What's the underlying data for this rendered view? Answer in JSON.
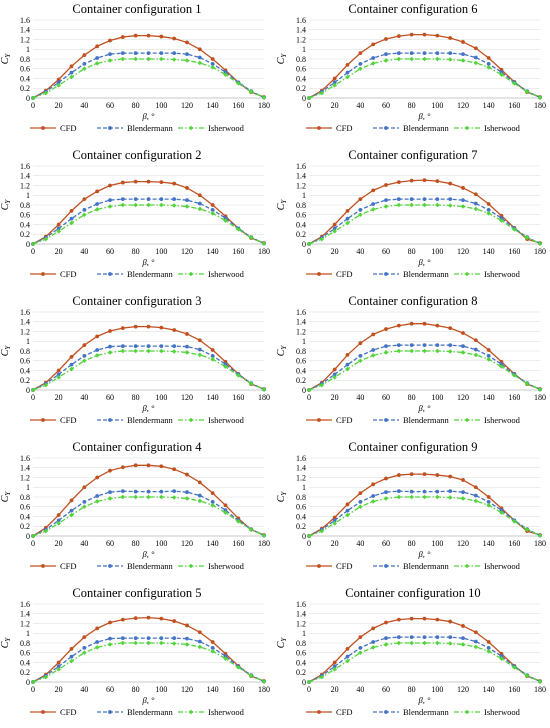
{
  "colors": {
    "cfd": "#c0501f",
    "blendermann": "#4472c4",
    "isherwood": "#52d43a",
    "axis": "#000000",
    "grid": "#d9d9d9"
  },
  "common": {
    "xlabel": "β, °",
    "ylabel_main": "C",
    "ylabel_sub": "Y",
    "x_ticks": [
      0,
      20,
      40,
      60,
      80,
      100,
      120,
      140,
      160,
      180
    ],
    "y_ticks": [
      0,
      0.2,
      0.4,
      0.6,
      0.8,
      1,
      1.2,
      1.4,
      1.6
    ],
    "series_names": [
      "CFD",
      "Blendermann",
      "Isherwood"
    ]
  },
  "chart_data": [
    {
      "type": "line",
      "title": "Container configuration 1",
      "xlabel": "β, °",
      "ylabel": "CY",
      "xlim": [
        0,
        180
      ],
      "ylim": [
        0,
        1.6
      ],
      "legend": "bottom",
      "x": [
        0,
        10,
        20,
        30,
        40,
        50,
        60,
        70,
        80,
        90,
        100,
        110,
        120,
        130,
        140,
        150,
        160,
        170,
        180
      ],
      "series": [
        {
          "name": "CFD",
          "values": [
            0,
            0.15,
            0.38,
            0.65,
            0.88,
            1.06,
            1.18,
            1.25,
            1.28,
            1.28,
            1.26,
            1.22,
            1.14,
            1.0,
            0.8,
            0.57,
            0.32,
            0.12,
            0.02
          ]
        },
        {
          "name": "Blendermann",
          "values": [
            0,
            0.13,
            0.32,
            0.52,
            0.7,
            0.82,
            0.9,
            0.92,
            0.92,
            0.92,
            0.92,
            0.92,
            0.9,
            0.83,
            0.7,
            0.53,
            0.32,
            0.14,
            0.01
          ]
        },
        {
          "name": "Isherwood",
          "values": [
            0,
            0.1,
            0.26,
            0.43,
            0.6,
            0.71,
            0.77,
            0.8,
            0.8,
            0.8,
            0.8,
            0.79,
            0.77,
            0.72,
            0.63,
            0.48,
            0.3,
            0.13,
            0.01
          ]
        }
      ]
    },
    {
      "type": "line",
      "title": "Container configuration 6",
      "xlabel": "β, °",
      "ylabel": "CY",
      "xlim": [
        0,
        180
      ],
      "ylim": [
        0,
        1.6
      ],
      "legend": "bottom",
      "x": [
        0,
        10,
        20,
        30,
        40,
        50,
        60,
        70,
        80,
        90,
        100,
        110,
        120,
        130,
        140,
        150,
        160,
        170,
        180
      ],
      "series": [
        {
          "name": "CFD",
          "values": [
            0,
            0.15,
            0.4,
            0.68,
            0.92,
            1.1,
            1.21,
            1.27,
            1.3,
            1.3,
            1.28,
            1.23,
            1.15,
            1.02,
            0.82,
            0.58,
            0.33,
            0.12,
            0.02
          ]
        },
        {
          "name": "Blendermann",
          "values": [
            0,
            0.13,
            0.32,
            0.52,
            0.7,
            0.82,
            0.9,
            0.92,
            0.92,
            0.92,
            0.92,
            0.92,
            0.9,
            0.83,
            0.7,
            0.53,
            0.32,
            0.14,
            0.01
          ]
        },
        {
          "name": "Isherwood",
          "values": [
            0,
            0.1,
            0.26,
            0.43,
            0.6,
            0.71,
            0.77,
            0.8,
            0.8,
            0.8,
            0.8,
            0.79,
            0.77,
            0.72,
            0.63,
            0.48,
            0.3,
            0.13,
            0.01
          ]
        }
      ]
    },
    {
      "type": "line",
      "title": "Container configuration 2",
      "xlabel": "β, °",
      "ylabel": "CY",
      "xlim": [
        0,
        180
      ],
      "ylim": [
        0,
        1.6
      ],
      "legend": "bottom",
      "x": [
        0,
        10,
        20,
        30,
        40,
        50,
        60,
        70,
        80,
        90,
        100,
        110,
        120,
        130,
        140,
        150,
        160,
        170,
        180
      ],
      "series": [
        {
          "name": "CFD",
          "values": [
            0,
            0.15,
            0.4,
            0.68,
            0.92,
            1.08,
            1.2,
            1.26,
            1.28,
            1.28,
            1.27,
            1.24,
            1.15,
            1.0,
            0.8,
            0.57,
            0.32,
            0.12,
            0.02
          ]
        },
        {
          "name": "Blendermann",
          "values": [
            0,
            0.13,
            0.32,
            0.52,
            0.7,
            0.82,
            0.9,
            0.92,
            0.92,
            0.92,
            0.92,
            0.92,
            0.9,
            0.83,
            0.7,
            0.53,
            0.32,
            0.14,
            0.01
          ]
        },
        {
          "name": "Isherwood",
          "values": [
            0,
            0.1,
            0.26,
            0.43,
            0.6,
            0.71,
            0.77,
            0.8,
            0.8,
            0.8,
            0.8,
            0.79,
            0.77,
            0.72,
            0.63,
            0.48,
            0.3,
            0.13,
            0.01
          ]
        }
      ]
    },
    {
      "type": "line",
      "title": "Container configuration 7",
      "xlabel": "β, °",
      "ylabel": "CY",
      "xlim": [
        0,
        180
      ],
      "ylim": [
        0,
        1.6
      ],
      "legend": "bottom",
      "x": [
        0,
        10,
        20,
        30,
        40,
        50,
        60,
        70,
        80,
        90,
        100,
        110,
        120,
        130,
        140,
        150,
        160,
        170,
        180
      ],
      "series": [
        {
          "name": "CFD",
          "values": [
            0,
            0.15,
            0.4,
            0.68,
            0.92,
            1.1,
            1.21,
            1.27,
            1.3,
            1.31,
            1.29,
            1.24,
            1.15,
            1.02,
            0.82,
            0.58,
            0.33,
            0.1,
            0.02
          ]
        },
        {
          "name": "Blendermann",
          "values": [
            0,
            0.13,
            0.32,
            0.52,
            0.7,
            0.82,
            0.9,
            0.92,
            0.92,
            0.92,
            0.92,
            0.92,
            0.9,
            0.83,
            0.7,
            0.53,
            0.32,
            0.14,
            0.01
          ]
        },
        {
          "name": "Isherwood",
          "values": [
            0,
            0.1,
            0.26,
            0.43,
            0.6,
            0.71,
            0.77,
            0.8,
            0.8,
            0.8,
            0.8,
            0.79,
            0.77,
            0.72,
            0.63,
            0.48,
            0.3,
            0.13,
            0.01
          ]
        }
      ]
    },
    {
      "type": "line",
      "title": "Container configuration 3",
      "xlabel": "β, °",
      "ylabel": "CY",
      "xlim": [
        0,
        180
      ],
      "ylim": [
        0,
        1.6
      ],
      "legend": "bottom",
      "x": [
        0,
        10,
        20,
        30,
        40,
        50,
        60,
        70,
        80,
        90,
        100,
        110,
        120,
        130,
        140,
        150,
        160,
        170,
        180
      ],
      "series": [
        {
          "name": "CFD",
          "values": [
            0,
            0.15,
            0.4,
            0.68,
            0.92,
            1.1,
            1.21,
            1.27,
            1.3,
            1.3,
            1.28,
            1.23,
            1.15,
            1.02,
            0.82,
            0.58,
            0.33,
            0.12,
            0.02
          ]
        },
        {
          "name": "Blendermann",
          "values": [
            0,
            0.13,
            0.32,
            0.52,
            0.7,
            0.82,
            0.89,
            0.9,
            0.9,
            0.9,
            0.9,
            0.9,
            0.89,
            0.83,
            0.7,
            0.53,
            0.32,
            0.14,
            0.01
          ]
        },
        {
          "name": "Isherwood",
          "values": [
            0,
            0.1,
            0.26,
            0.43,
            0.6,
            0.71,
            0.77,
            0.8,
            0.8,
            0.8,
            0.8,
            0.79,
            0.77,
            0.72,
            0.63,
            0.48,
            0.3,
            0.13,
            0.01
          ]
        }
      ]
    },
    {
      "type": "line",
      "title": "Container configuration 8",
      "xlabel": "β, °",
      "ylabel": "CY",
      "xlim": [
        0,
        180
      ],
      "ylim": [
        0,
        1.6
      ],
      "legend": "bottom",
      "x": [
        0,
        10,
        20,
        30,
        40,
        50,
        60,
        70,
        80,
        90,
        100,
        110,
        120,
        130,
        140,
        150,
        160,
        170,
        180
      ],
      "series": [
        {
          "name": "CFD",
          "values": [
            0,
            0.15,
            0.42,
            0.72,
            0.96,
            1.14,
            1.25,
            1.32,
            1.36,
            1.36,
            1.32,
            1.27,
            1.17,
            1.02,
            0.82,
            0.58,
            0.33,
            0.12,
            0.02
          ]
        },
        {
          "name": "Blendermann",
          "values": [
            0,
            0.13,
            0.32,
            0.52,
            0.7,
            0.82,
            0.9,
            0.92,
            0.92,
            0.92,
            0.92,
            0.92,
            0.9,
            0.83,
            0.7,
            0.53,
            0.32,
            0.14,
            0.01
          ]
        },
        {
          "name": "Isherwood",
          "values": [
            0,
            0.1,
            0.26,
            0.43,
            0.6,
            0.71,
            0.77,
            0.8,
            0.8,
            0.8,
            0.8,
            0.79,
            0.77,
            0.72,
            0.63,
            0.48,
            0.3,
            0.13,
            0.01
          ]
        }
      ]
    },
    {
      "type": "line",
      "title": "Container configuration 4",
      "xlabel": "β, °",
      "ylabel": "CY",
      "xlim": [
        0,
        180
      ],
      "ylim": [
        0,
        1.6
      ],
      "legend": "bottom",
      "x": [
        0,
        10,
        20,
        30,
        40,
        50,
        60,
        70,
        80,
        90,
        100,
        110,
        120,
        130,
        140,
        150,
        160,
        170,
        180
      ],
      "series": [
        {
          "name": "CFD",
          "values": [
            0,
            0.17,
            0.43,
            0.73,
            1.0,
            1.2,
            1.34,
            1.41,
            1.45,
            1.45,
            1.43,
            1.37,
            1.26,
            1.1,
            0.88,
            0.63,
            0.36,
            0.13,
            0.02
          ]
        },
        {
          "name": "Blendermann",
          "values": [
            0,
            0.13,
            0.32,
            0.52,
            0.7,
            0.82,
            0.9,
            0.92,
            0.91,
            0.91,
            0.91,
            0.92,
            0.9,
            0.83,
            0.7,
            0.53,
            0.32,
            0.14,
            0.01
          ]
        },
        {
          "name": "Isherwood",
          "values": [
            0,
            0.1,
            0.26,
            0.43,
            0.6,
            0.71,
            0.77,
            0.8,
            0.8,
            0.8,
            0.8,
            0.79,
            0.77,
            0.72,
            0.63,
            0.48,
            0.3,
            0.13,
            0.01
          ]
        }
      ]
    },
    {
      "type": "line",
      "title": "Container configuration 9",
      "xlabel": "β, °",
      "ylabel": "CY",
      "xlim": [
        0,
        180
      ],
      "ylim": [
        0,
        1.6
      ],
      "legend": "bottom",
      "x": [
        0,
        10,
        20,
        30,
        40,
        50,
        60,
        70,
        80,
        90,
        100,
        110,
        120,
        130,
        140,
        150,
        160,
        170,
        180
      ],
      "series": [
        {
          "name": "CFD",
          "values": [
            0,
            0.15,
            0.38,
            0.65,
            0.88,
            1.06,
            1.18,
            1.25,
            1.27,
            1.27,
            1.25,
            1.22,
            1.15,
            1.0,
            0.8,
            0.57,
            0.32,
            0.1,
            0.02
          ]
        },
        {
          "name": "Blendermann",
          "values": [
            0,
            0.13,
            0.32,
            0.52,
            0.7,
            0.82,
            0.9,
            0.92,
            0.91,
            0.91,
            0.91,
            0.92,
            0.9,
            0.83,
            0.7,
            0.53,
            0.32,
            0.14,
            0.01
          ]
        },
        {
          "name": "Isherwood",
          "values": [
            0,
            0.1,
            0.26,
            0.43,
            0.6,
            0.71,
            0.77,
            0.8,
            0.8,
            0.8,
            0.8,
            0.79,
            0.77,
            0.72,
            0.63,
            0.48,
            0.3,
            0.13,
            0.01
          ]
        }
      ]
    },
    {
      "type": "line",
      "title": "Container configuration 5",
      "xlabel": "β, °",
      "ylabel": "CY",
      "xlim": [
        0,
        180
      ],
      "ylim": [
        0,
        1.6
      ],
      "legend": "bottom",
      "x": [
        0,
        10,
        20,
        30,
        40,
        50,
        60,
        70,
        80,
        90,
        100,
        110,
        120,
        130,
        140,
        150,
        160,
        170,
        180
      ],
      "series": [
        {
          "name": "CFD",
          "values": [
            0,
            0.15,
            0.4,
            0.68,
            0.92,
            1.1,
            1.22,
            1.28,
            1.31,
            1.32,
            1.3,
            1.25,
            1.16,
            1.02,
            0.82,
            0.58,
            0.33,
            0.12,
            0.02
          ]
        },
        {
          "name": "Blendermann",
          "values": [
            0,
            0.13,
            0.32,
            0.52,
            0.7,
            0.82,
            0.89,
            0.9,
            0.9,
            0.9,
            0.9,
            0.9,
            0.89,
            0.83,
            0.7,
            0.53,
            0.32,
            0.14,
            0.01
          ]
        },
        {
          "name": "Isherwood",
          "values": [
            0,
            0.1,
            0.26,
            0.43,
            0.6,
            0.71,
            0.77,
            0.8,
            0.8,
            0.8,
            0.8,
            0.79,
            0.77,
            0.72,
            0.63,
            0.48,
            0.3,
            0.13,
            0.01
          ]
        }
      ]
    },
    {
      "type": "line",
      "title": "Container configuration 10",
      "xlabel": "β, °",
      "ylabel": "CY",
      "xlim": [
        0,
        180
      ],
      "ylim": [
        0,
        1.6
      ],
      "legend": "bottom",
      "x": [
        0,
        10,
        20,
        30,
        40,
        50,
        60,
        70,
        80,
        90,
        100,
        110,
        120,
        130,
        140,
        150,
        160,
        170,
        180
      ],
      "series": [
        {
          "name": "CFD",
          "values": [
            0,
            0.15,
            0.4,
            0.68,
            0.92,
            1.1,
            1.22,
            1.28,
            1.3,
            1.3,
            1.28,
            1.24,
            1.15,
            1.02,
            0.82,
            0.58,
            0.33,
            0.12,
            0.02
          ]
        },
        {
          "name": "Blendermann",
          "values": [
            0,
            0.13,
            0.32,
            0.52,
            0.7,
            0.82,
            0.9,
            0.92,
            0.92,
            0.92,
            0.92,
            0.92,
            0.9,
            0.83,
            0.7,
            0.53,
            0.32,
            0.14,
            0.01
          ]
        },
        {
          "name": "Isherwood",
          "values": [
            0,
            0.1,
            0.26,
            0.43,
            0.6,
            0.71,
            0.77,
            0.8,
            0.8,
            0.8,
            0.8,
            0.79,
            0.77,
            0.72,
            0.63,
            0.48,
            0.3,
            0.13,
            0.01
          ]
        }
      ]
    }
  ]
}
